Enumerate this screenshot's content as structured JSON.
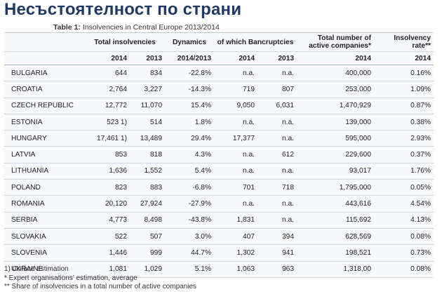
{
  "page_title": "Несъстоятелност по страни",
  "caption": {
    "label": "Table 1:",
    "text": " Insolvencies in Central Europe 2013/2014"
  },
  "columns": {
    "total_insolvencies": "Total insolvencies",
    "dynamics": "Dynamics",
    "bancruptcies": "of which Bancruptcies",
    "active_companies_l1": "Total number of",
    "active_companies_l2": "active companies*",
    "insolvency_rate_l1": "Insolvency",
    "insolvency_rate_l2": "rate**"
  },
  "subheaders": [
    "2014",
    "2013",
    "2014/2013",
    "2014",
    "2013",
    "2014",
    "2014"
  ],
  "rows": [
    [
      "BULGARIA",
      "644",
      "834",
      "-22.8%",
      "n.a.",
      "n.a.",
      "400,000",
      "0.16%"
    ],
    [
      "CROATIA",
      "2,764",
      "3,227",
      "-14.3%",
      "719",
      "807",
      "253,000",
      "1.09%"
    ],
    [
      "CZECH REPUBLIC",
      "12,772",
      "11,070",
      "15.4%",
      "9,050",
      "6,031",
      "1,470,929",
      "0.87%"
    ],
    [
      "ESTONIA",
      "523 1)",
      "514",
      "1.8%",
      "n.a.",
      "n.a.",
      "139,000",
      "0.38%"
    ],
    [
      "HUNGARY",
      "17,461 1)",
      "13,489",
      "29.4%",
      "17,377",
      "n.a.",
      "595,000",
      "2.93%"
    ],
    [
      "LATVIA",
      "853",
      "818",
      "4.3%",
      "n.a.",
      "612",
      "229,600",
      "0.37%"
    ],
    [
      "LITHUANIA",
      "1,636",
      "1,552",
      "5.4%",
      "n.a.",
      "n.a.",
      "93,017",
      "1.76%"
    ],
    [
      "POLAND",
      "823",
      "883",
      "-6.8%",
      "701",
      "718",
      "1,795,000",
      "0.05%"
    ],
    [
      "ROMANIA",
      "20,120",
      "27,924",
      "-27.9%",
      "n.a.",
      "n.a.",
      "443,616",
      "4.54%"
    ],
    [
      "SERBIA",
      "4,773",
      "8,498",
      "-43.8%",
      "1,831",
      "n.a.",
      "115,692",
      "4.13%"
    ],
    [
      "SLOVAKIA",
      "522",
      "507",
      "3.0%",
      "407",
      "394",
      "628,569",
      "0.08%"
    ],
    [
      "SLOVENIA",
      "1,446",
      "999",
      "44.7%",
      "1,302",
      "941",
      "198,521",
      "0.73%"
    ],
    [
      "UKRAINE",
      "1,081",
      "1,029",
      "5.1%",
      "1,063",
      "963",
      "1,318,00",
      "0.08%"
    ]
  ],
  "notes": [
    "1) Coface estimation",
    "* Expert organisations' estimation, average",
    "** Share of insolvencies in a total number of active companies"
  ]
}
